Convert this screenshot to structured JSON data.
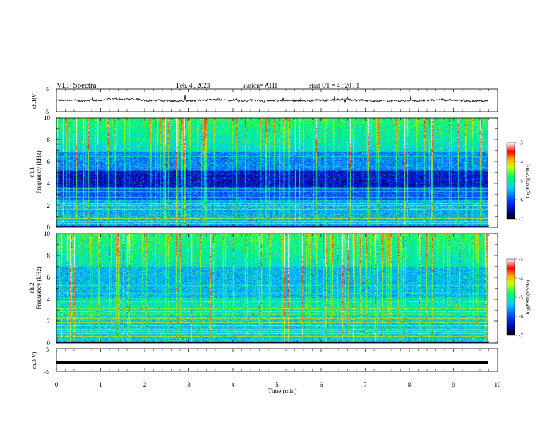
{
  "header": {
    "title": "VLF  Spectra",
    "date": "Feb. 4  , 2023",
    "station": "station= ATH",
    "start": "start  UT  =   4  : 20 : 1"
  },
  "chart_data": [
    {
      "type": "line",
      "ylabel": "ch.1(V)",
      "ylim": [
        -5,
        5
      ],
      "yticks": [
        "5",
        "-5"
      ],
      "xlim": [
        0,
        10
      ]
    },
    {
      "type": "heatmap",
      "ylabel_top": "ch.1",
      "ylabel": "Frequency  (kHz)",
      "ylim": [
        0,
        10
      ],
      "yticks": [
        "0",
        "2",
        "4",
        "6",
        "8",
        "10"
      ],
      "xlim": [
        0,
        10
      ],
      "colorbar": {
        "label": "log(PSD)(V²/Hz)",
        "range": [
          -7,
          -3
        ],
        "ticks": [
          "-3",
          "-4",
          "-5",
          "-6",
          "-7"
        ]
      }
    },
    {
      "type": "heatmap",
      "ylabel_top": "ch.2",
      "ylabel": "Frequency  (kHz)",
      "ylim": [
        0,
        10
      ],
      "yticks": [
        "0",
        "2",
        "4",
        "6",
        "8",
        "10"
      ],
      "xlim": [
        0,
        10
      ],
      "colorbar": {
        "label": "log(PSD)(V²/Hz)",
        "range": [
          -7,
          -3
        ],
        "ticks": [
          "-3",
          "-4",
          "-5",
          "-6",
          "-7"
        ]
      }
    },
    {
      "type": "line",
      "ylabel": "ch.3(V)",
      "ylim": [
        -5,
        5
      ],
      "yticks": [
        "5",
        "-5"
      ],
      "xlim": [
        0,
        10
      ],
      "value": -1
    }
  ],
  "x_axis": {
    "label": "Time  (min)",
    "ticks": [
      "0",
      "1",
      "2",
      "3",
      "4",
      "5",
      "6",
      "7",
      "8",
      "9",
      "10"
    ]
  }
}
